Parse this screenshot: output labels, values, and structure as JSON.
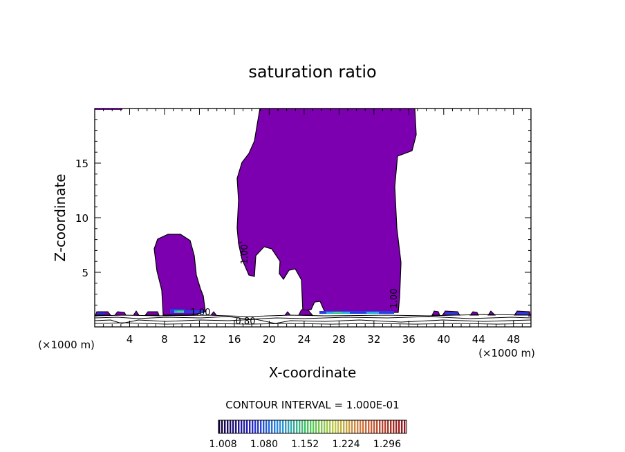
{
  "chart_data": {
    "type": "heatmap",
    "title": "saturation ratio",
    "xlabel": "X-coordinate",
    "ylabel": "Z-coordinate",
    "x_unit_left": "(×1000 m)",
    "x_unit_right": "(×1000 m)",
    "xlim": [
      0,
      50
    ],
    "ylim": [
      0,
      20
    ],
    "x_ticks": [
      "4",
      "8",
      "12",
      "16",
      "20",
      "24",
      "28",
      "32",
      "36",
      "40",
      "44",
      "48"
    ],
    "y_ticks": [
      "5",
      "10",
      "15"
    ],
    "contour_labels": [
      "1.00",
      "1.00",
      "1.00",
      "0.80"
    ],
    "contour_interval_text": "CONTOUR INTERVAL = 1.000E-01",
    "colorbar_ticks": [
      "1.008",
      "1.080",
      "1.152",
      "1.224",
      "1.296"
    ],
    "colorbar_range": [
      1.0,
      1.33
    ],
    "colors": {
      "supersaturated_fill": "#7c00b0",
      "contour_line": "#000000"
    }
  }
}
